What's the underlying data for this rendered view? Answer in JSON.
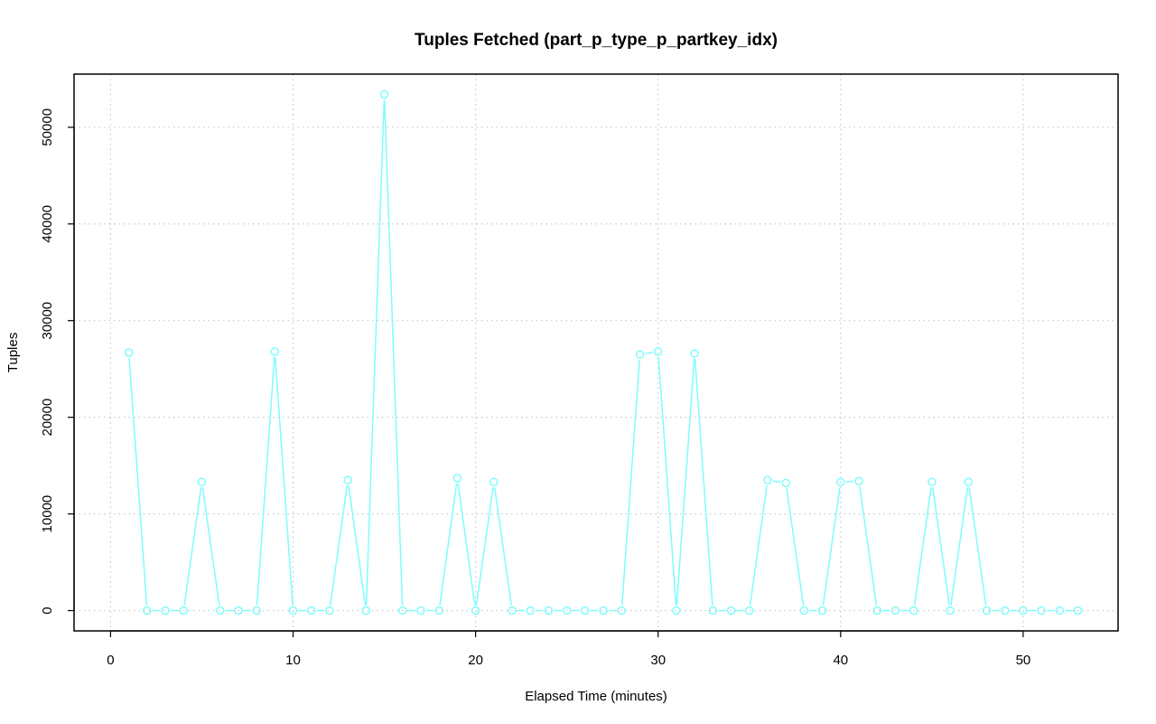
{
  "chart_data": {
    "type": "line",
    "title": "Tuples Fetched (part_p_type_p_partkey_idx)",
    "xlabel": "Elapsed Time (minutes)",
    "ylabel": "Tuples",
    "xlim": [
      -2,
      55.2
    ],
    "ylim": [
      -2100,
      55500
    ],
    "xticks": [
      0,
      10,
      20,
      30,
      40,
      50
    ],
    "yticks": [
      0,
      10000,
      20000,
      30000,
      40000,
      50000
    ],
    "grid": true,
    "series_color": "#7ffcfc",
    "marker": "open-circle",
    "x": [
      1,
      2,
      3,
      4,
      5,
      6,
      7,
      8,
      9,
      10,
      11,
      12,
      13,
      14,
      15,
      16,
      17,
      18,
      19,
      20,
      21,
      22,
      23,
      24,
      25,
      26,
      27,
      28,
      29,
      30,
      31,
      32,
      33,
      34,
      35,
      36,
      37,
      38,
      39,
      40,
      41,
      42,
      43,
      44,
      45,
      46,
      47,
      48,
      49,
      50,
      51,
      52,
      53
    ],
    "values": [
      26700,
      0,
      0,
      0,
      13300,
      0,
      0,
      0,
      26800,
      0,
      0,
      0,
      13500,
      0,
      53400,
      0,
      0,
      0,
      13700,
      0,
      13300,
      0,
      0,
      0,
      0,
      0,
      0,
      0,
      26500,
      26800,
      0,
      26600,
      0,
      0,
      0,
      13500,
      13200,
      0,
      0,
      13300,
      13400,
      0,
      0,
      0,
      13300,
      0,
      13300,
      0,
      0,
      0,
      0,
      0,
      0
    ]
  }
}
